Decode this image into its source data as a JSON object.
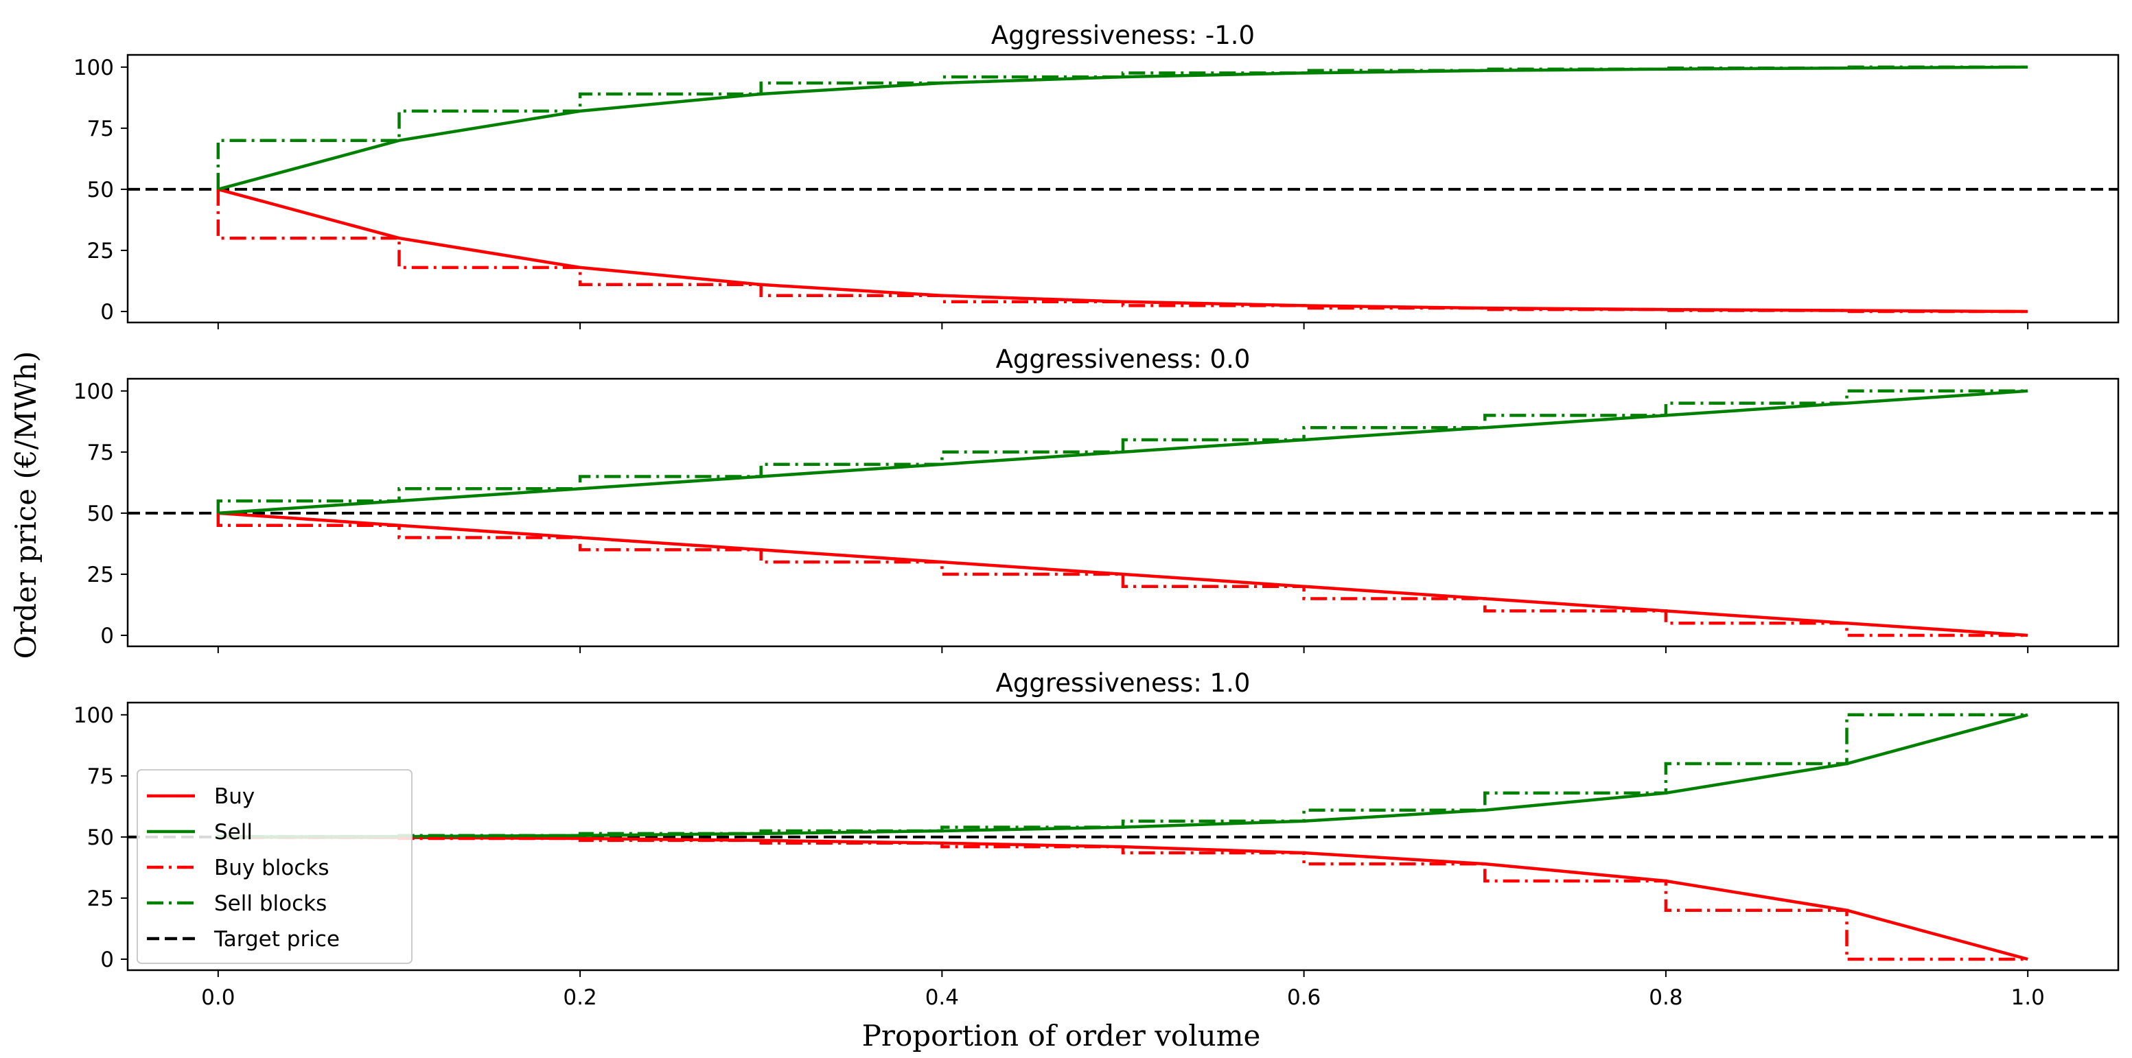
{
  "chart_data": {
    "type": "line",
    "xlabel": "Proportion of order volume",
    "ylabel": "Order price (€/MWh)",
    "xlim": [
      -0.05,
      1.05
    ],
    "ylim": [
      -4.5,
      105
    ],
    "xticks": [
      "0.0",
      "0.2",
      "0.4",
      "0.6",
      "0.8",
      "1.0"
    ],
    "xtick_values": [
      0.0,
      0.2,
      0.4,
      0.6,
      0.8,
      1.0
    ],
    "yticks": [
      "0",
      "25",
      "50",
      "75",
      "100"
    ],
    "ytick_values": [
      0,
      25,
      50,
      75,
      100
    ],
    "x": [
      0.0,
      0.1,
      0.2,
      0.3,
      0.4,
      0.5,
      0.6,
      0.7,
      0.8,
      0.9,
      1.0
    ],
    "target_price": 50,
    "colors": {
      "buy": "#ff0000",
      "sell": "#008000",
      "target": "#000000"
    },
    "legend": {
      "position": "lower-left of bottom panel",
      "entries": [
        {
          "label": "Buy",
          "style": "solid",
          "color": "#ff0000"
        },
        {
          "label": "Sell",
          "style": "solid",
          "color": "#008000"
        },
        {
          "label": "Buy blocks",
          "style": "dashdot",
          "color": "#ff0000"
        },
        {
          "label": "Sell blocks",
          "style": "dashdot",
          "color": "#008000"
        },
        {
          "label": "Target price",
          "style": "dashed",
          "color": "#000000"
        }
      ]
    },
    "panels": [
      {
        "title": "Aggressiveness: -1.0",
        "series": [
          {
            "name": "Buy",
            "values": [
              50,
              30,
              18,
              11,
              6.5,
              4,
              2.4,
              1.4,
              0.8,
              0.4,
              0
            ]
          },
          {
            "name": "Sell",
            "values": [
              50,
              70,
              82,
              89,
              93.5,
              96,
              97.6,
              98.6,
              99.2,
              99.6,
              100
            ]
          },
          {
            "name": "Buy blocks",
            "values": [
              30,
              18,
              11,
              6.5,
              4,
              2.4,
              1.4,
              0.8,
              0.4,
              0
            ]
          },
          {
            "name": "Sell blocks",
            "values": [
              70,
              82,
              89,
              93.5,
              96,
              97.6,
              98.6,
              99.2,
              99.6,
              100
            ]
          }
        ]
      },
      {
        "title": "Aggressiveness: 0.0",
        "series": [
          {
            "name": "Buy",
            "values": [
              50,
              45,
              40,
              35,
              30,
              25,
              20,
              15,
              10,
              5,
              0
            ]
          },
          {
            "name": "Sell",
            "values": [
              50,
              55,
              60,
              65,
              70,
              75,
              80,
              85,
              90,
              95,
              100
            ]
          },
          {
            "name": "Buy blocks",
            "values": [
              45,
              40,
              35,
              30,
              25,
              20,
              15,
              10,
              5,
              0
            ]
          },
          {
            "name": "Sell blocks",
            "values": [
              55,
              60,
              65,
              70,
              75,
              80,
              85,
              90,
              95,
              100
            ]
          }
        ]
      },
      {
        "title": "Aggressiveness: 1.0",
        "series": [
          {
            "name": "Buy",
            "values": [
              50,
              49.8,
              49.4,
              48.6,
              47.5,
              46,
              43.5,
              39,
              32,
              20,
              0
            ]
          },
          {
            "name": "Sell",
            "values": [
              50,
              50.2,
              50.6,
              51.4,
              52.5,
              54,
              56.5,
              61,
              68,
              80,
              100
            ]
          },
          {
            "name": "Buy blocks",
            "values": [
              49.8,
              49.4,
              48.6,
              47.5,
              46,
              43.5,
              39,
              32,
              20,
              0
            ]
          },
          {
            "name": "Sell blocks",
            "values": [
              50.2,
              50.6,
              51.4,
              52.5,
              54,
              56.5,
              61,
              68,
              80,
              100
            ]
          }
        ]
      }
    ]
  }
}
